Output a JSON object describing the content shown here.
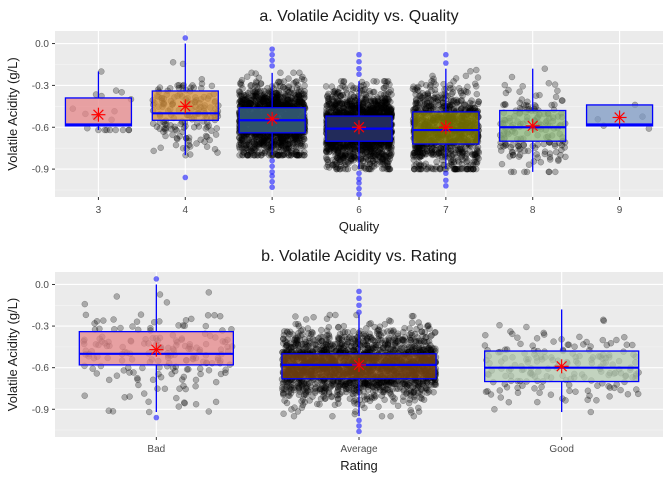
{
  "chart_data": [
    {
      "type": "box",
      "title": "a. Volatile Acidity vs. Quality",
      "xlabel": "Quality",
      "ylabel": "Volatile Acidity (g/L)",
      "categories": [
        "3",
        "4",
        "5",
        "6",
        "7",
        "8",
        "9"
      ],
      "ylim": [
        -1.1,
        0.09
      ],
      "yticks": [
        0.0,
        -0.3,
        -0.6,
        -0.9
      ],
      "ytick_labels": [
        "0.0",
        "-0.3",
        "-0.6",
        "-0.9"
      ],
      "grid": true,
      "fill_colors": [
        "#e6878a",
        "#d6903a",
        "#3d6e8e",
        "#2e3a78",
        "#8f8a00",
        "#8fba7c",
        "#7d9ac4"
      ],
      "box_stroke_color": "#0000ff",
      "mean_marker_color": "#ff0000",
      "point_color": "#000000",
      "outlier_color": "#0000ff",
      "boxes": [
        {
          "category": "3",
          "q1": -0.59,
          "median": -0.58,
          "q3": -0.39,
          "whisker_low": -0.62,
          "whisker_high": -0.2,
          "mean": -0.51,
          "n": 20,
          "outliers": []
        },
        {
          "category": "4",
          "q1": -0.55,
          "median": -0.5,
          "q3": -0.34,
          "whisker_low": -0.8,
          "whisker_high": 0.0,
          "mean": -0.45,
          "n": 160,
          "outliers": [
            0.04,
            -0.96
          ]
        },
        {
          "category": "5",
          "q1": -0.64,
          "median": -0.55,
          "q3": -0.46,
          "whisker_low": -0.8,
          "whisker_high": -0.21,
          "mean": -0.54,
          "n": 1450,
          "outliers": [
            -0.04,
            -0.08,
            -0.12,
            -0.16,
            -0.84,
            -0.88,
            -0.92,
            -0.95,
            -0.99,
            -1.03
          ]
        },
        {
          "category": "6",
          "q1": -0.7,
          "median": -0.61,
          "q3": -0.52,
          "whisker_low": -0.9,
          "whisker_high": -0.27,
          "mean": -0.6,
          "n": 2200,
          "outliers": [
            -0.08,
            -0.13,
            -0.18,
            -0.22,
            -0.93,
            -0.97,
            -1.0,
            -1.04,
            -1.08
          ]
        },
        {
          "category": "7",
          "q1": -0.72,
          "median": -0.62,
          "q3": -0.49,
          "whisker_low": -0.9,
          "whisker_high": -0.18,
          "mean": -0.6,
          "n": 880,
          "outliers": [
            -0.08,
            -0.14,
            -0.93,
            -0.98,
            -1.02
          ]
        },
        {
          "category": "8",
          "q1": -0.7,
          "median": -0.6,
          "q3": -0.48,
          "whisker_low": -0.92,
          "whisker_high": -0.18,
          "mean": -0.59,
          "n": 175,
          "outliers": []
        },
        {
          "category": "9",
          "q1": -0.59,
          "median": -0.58,
          "q3": -0.44,
          "whisker_low": -0.61,
          "whisker_high": -0.44,
          "mean": -0.53,
          "n": 5,
          "outliers": []
        }
      ]
    },
    {
      "type": "box",
      "title": "b. Volatile Acidity vs. Rating",
      "xlabel": "Rating",
      "ylabel": "Volatile Acidity (g/L)",
      "categories": [
        "Bad",
        "Average",
        "Good"
      ],
      "ylim": [
        -1.1,
        0.09
      ],
      "yticks": [
        0.0,
        -0.3,
        -0.6,
        -0.9
      ],
      "ytick_labels": [
        "0.0",
        "-0.3",
        "-0.6",
        "-0.9"
      ],
      "grid": true,
      "fill_colors": [
        "#e6878a",
        "#8a4e14",
        "#b4cbb0"
      ],
      "box_stroke_color": "#0000ff",
      "mean_marker_color": "#ff0000",
      "point_color": "#000000",
      "outlier_color": "#0000ff",
      "boxes": [
        {
          "category": "Bad",
          "q1": -0.58,
          "median": -0.5,
          "q3": -0.34,
          "whisker_low": -0.92,
          "whisker_high": 0.0,
          "mean": -0.47,
          "n": 185,
          "outliers": [
            0.04,
            -0.96
          ]
        },
        {
          "category": "Average",
          "q1": -0.68,
          "median": -0.58,
          "q3": -0.5,
          "whisker_low": -0.95,
          "whisker_high": -0.22,
          "mean": -0.58,
          "n": 4500,
          "outliers": [
            -0.05,
            -0.1,
            -0.15,
            -0.2,
            -0.98,
            -1.02,
            -1.06
          ]
        },
        {
          "category": "Good",
          "q1": -0.7,
          "median": -0.6,
          "q3": -0.48,
          "whisker_low": -0.92,
          "whisker_high": -0.18,
          "mean": -0.59,
          "n": 180,
          "outliers": []
        }
      ]
    }
  ]
}
